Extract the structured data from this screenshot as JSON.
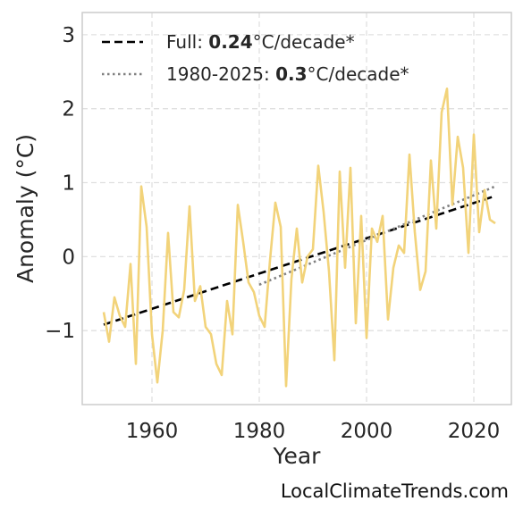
{
  "chart_data": {
    "type": "line",
    "title": "",
    "xlabel": "Year",
    "ylabel": "Anomaly (°C)",
    "xlim": [
      1947,
      2027
    ],
    "ylim": [
      -2.0,
      3.3
    ],
    "xticks": [
      1960,
      1980,
      2000,
      2020
    ],
    "yticks": [
      -1,
      0,
      1,
      2,
      3
    ],
    "grid": true,
    "legend_position": "top-left",
    "series": [
      {
        "name": "",
        "color": "#f2d37a",
        "x": [
          1951,
          1952,
          1953,
          1954,
          1955,
          1956,
          1957,
          1958,
          1959,
          1960,
          1961,
          1962,
          1963,
          1964,
          1965,
          1966,
          1967,
          1968,
          1969,
          1970,
          1971,
          1972,
          1973,
          1974,
          1975,
          1976,
          1977,
          1978,
          1979,
          1980,
          1981,
          1982,
          1983,
          1984,
          1985,
          1986,
          1987,
          1988,
          1989,
          1990,
          1991,
          1992,
          1993,
          1994,
          1995,
          1996,
          1997,
          1998,
          1999,
          2000,
          2001,
          2002,
          2003,
          2004,
          2005,
          2006,
          2007,
          2008,
          2009,
          2010,
          2011,
          2012,
          2013,
          2014,
          2015,
          2016,
          2017,
          2018,
          2019,
          2020,
          2021,
          2022,
          2023,
          2024
        ],
        "y": [
          -0.75,
          -1.15,
          -0.55,
          -0.8,
          -0.95,
          -0.1,
          -1.45,
          0.95,
          0.4,
          -1.05,
          -1.7,
          -1.0,
          0.32,
          -0.75,
          -0.82,
          -0.45,
          0.68,
          -0.6,
          -0.4,
          -0.95,
          -1.05,
          -1.45,
          -1.6,
          -0.6,
          -1.05,
          0.7,
          0.2,
          -0.35,
          -0.48,
          -0.8,
          -0.95,
          -0.05,
          0.73,
          0.4,
          -1.75,
          -0.3,
          0.38,
          -0.35,
          0.0,
          0.1,
          1.23,
          0.6,
          -0.2,
          -1.4,
          1.15,
          -0.15,
          1.2,
          -0.9,
          0.55,
          -1.1,
          0.38,
          0.2,
          0.55,
          -0.85,
          -0.15,
          0.15,
          0.05,
          1.38,
          0.33,
          -0.45,
          -0.2,
          1.3,
          0.38,
          1.95,
          2.27,
          0.7,
          1.62,
          1.2,
          0.05,
          1.65,
          0.33,
          0.9,
          0.5,
          0.45
        ]
      }
    ],
    "trends": [
      {
        "label_prefix": "Full: ",
        "label_value": "0.24",
        "label_suffix": "°C/decade*",
        "style": "dashed",
        "color": "#000000",
        "x": [
          1951,
          2024
        ],
        "y": [
          -0.92,
          0.82
        ]
      },
      {
        "label_prefix": "1980-2025: ",
        "label_value": "0.3",
        "label_suffix": "°C/decade*",
        "style": "dotted",
        "color": "#808080",
        "x": [
          1980,
          2024
        ],
        "y": [
          -0.38,
          0.95
        ]
      }
    ]
  },
  "watermark": "LocalClimateTrends.com"
}
